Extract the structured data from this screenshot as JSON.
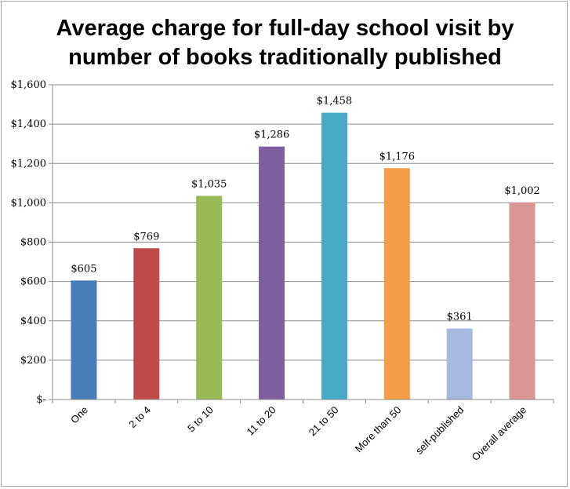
{
  "chart_data": {
    "type": "bar",
    "title_lines": [
      "Average charge for full-day school visit by",
      "number of books traditionally published"
    ],
    "categories": [
      "One",
      "2 to 4",
      "5 to 10",
      "11 to 20",
      "21 to 50",
      "More than 50",
      "self-published",
      "Overall average"
    ],
    "values": [
      605,
      769,
      1035,
      1286,
      1458,
      1176,
      361,
      1002
    ],
    "data_labels": [
      "$605",
      "$769",
      "$1,035",
      "$1,286",
      "$1,458",
      "$1,176",
      "$361",
      "$1,002"
    ],
    "colors": [
      "#4a7ebb",
      "#be4b48",
      "#98b954",
      "#7d60a0",
      "#46aac5",
      "#f59c46",
      "#a7b9e0",
      "#da9694"
    ],
    "yticks": [
      0,
      200,
      400,
      600,
      800,
      1000,
      1200,
      1400,
      1600
    ],
    "ytick_labels": [
      "$-",
      "$200",
      "$400",
      "$600",
      "$800",
      "$1,000",
      "$1,200",
      "$1,400",
      "$1,600"
    ],
    "ylim": [
      0,
      1600
    ],
    "grid": true,
    "legend": "none"
  }
}
